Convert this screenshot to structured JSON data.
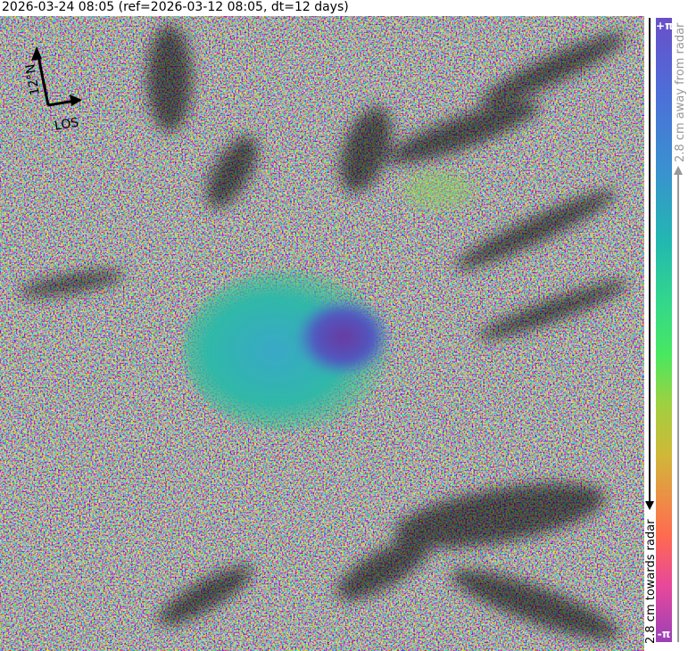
{
  "title": "2026-03-24 08:05 (ref=2026-03-12 08:05, dt=12 days)",
  "map": {
    "north_label": "12°N",
    "los_label": "LOS",
    "north_arrow_icon": "north-arrow-icon",
    "los_arrow_icon": "los-arrow-icon"
  },
  "colorbar": {
    "top_label": "+π",
    "bottom_label": "-π",
    "away_label": "2.8 cm away from radar",
    "towards_label": "2.8 cm towards radar",
    "colors": [
      "#6a4fc8",
      "#4d6ed8",
      "#22b8b0",
      "#48e860",
      "#d0b838",
      "#ff6a50",
      "#e8489a",
      "#9a40b8"
    ]
  }
}
